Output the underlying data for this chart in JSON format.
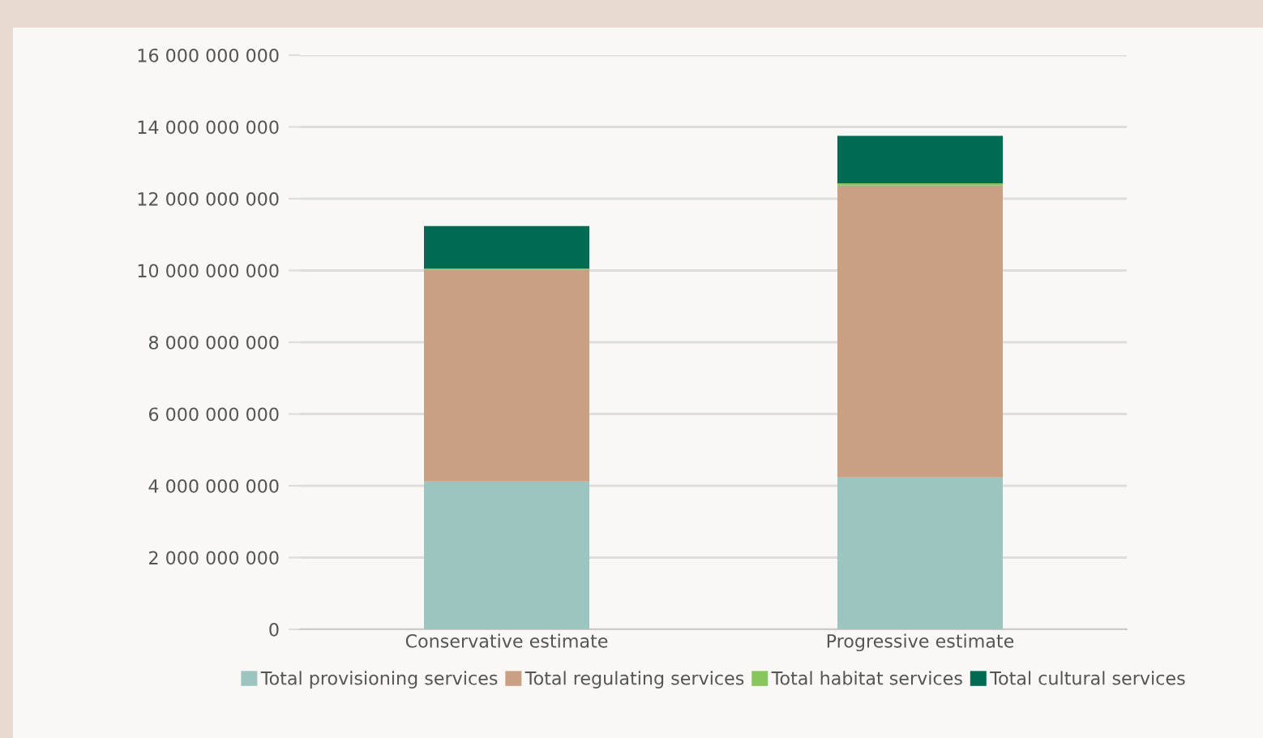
{
  "chart_data": {
    "type": "bar",
    "stacked": true,
    "categories": [
      "Conservative estimate",
      "Progressive estimate"
    ],
    "series": [
      {
        "name": "Total provisioning services",
        "color": "#9dc5c0",
        "values": [
          4120000000,
          4230000000
        ]
      },
      {
        "name": "Total regulating services",
        "color": "#c9a084",
        "values": [
          5900000000,
          8140000000
        ]
      },
      {
        "name": "Total habitat services",
        "color": "#86c65c",
        "values": [
          30000000,
          60000000
        ]
      },
      {
        "name": "Total cultural services",
        "color": "#006a52",
        "values": [
          1190000000,
          1320000000
        ]
      }
    ],
    "ylim": [
      0,
      16000000000
    ],
    "yticks": [
      {
        "value": 0,
        "label": "0"
      },
      {
        "value": 2000000000,
        "label": "2 000 000 000"
      },
      {
        "value": 4000000000,
        "label": "4 000 000 000"
      },
      {
        "value": 6000000000,
        "label": "6 000 000 000"
      },
      {
        "value": 8000000000,
        "label": "8 000 000 000"
      },
      {
        "value": 10000000000,
        "label": "10 000 000 000"
      },
      {
        "value": 12000000000,
        "label": "12 000 000 000"
      },
      {
        "value": 14000000000,
        "label": "14 000 000 000"
      },
      {
        "value": 16000000000,
        "label": "16 000 000 000"
      }
    ],
    "grid": "y",
    "legend": "bottom"
  }
}
